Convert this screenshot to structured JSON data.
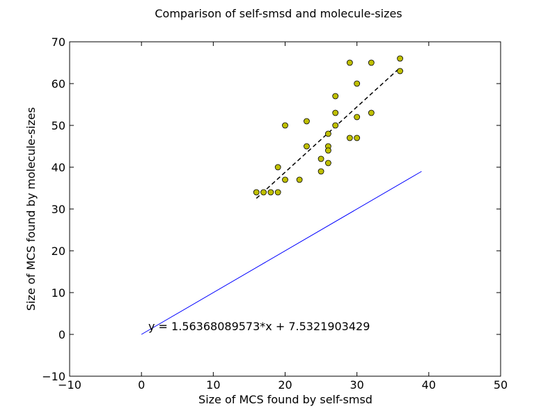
{
  "chart_data": {
    "type": "scatter",
    "title": "Comparison of self-smsd and molecule-sizes",
    "xlabel": "Size of MCS found by self-smsd",
    "ylabel": "Size of MCS found by molecule-sizes",
    "xlim": [
      -10,
      50
    ],
    "ylim": [
      -10,
      70
    ],
    "xticks": [
      "−10",
      "0",
      "10",
      "20",
      "30",
      "40",
      "50"
    ],
    "yticks": [
      "−10",
      "0",
      "10",
      "20",
      "30",
      "40",
      "50",
      "60",
      "70"
    ],
    "grid": false,
    "annotation": "y = 1.56368089573*x + 7.5321903429",
    "colors": {
      "points_fill": "#bfbf00",
      "points_edge": "#000000",
      "fit_line": "#000000",
      "identity_line": "#0000ff"
    },
    "series": [
      {
        "type": "scatter",
        "x": [
          16,
          17,
          18,
          19,
          19,
          20,
          20,
          22,
          23,
          23,
          25,
          25,
          26,
          26,
          26,
          26,
          27,
          27,
          27,
          29,
          29,
          30,
          30,
          30,
          32,
          32,
          36,
          36
        ],
        "y": [
          34,
          34,
          34,
          34,
          40,
          37,
          50,
          37,
          45,
          51,
          42,
          39,
          48,
          45,
          44,
          41,
          57,
          53,
          50,
          65,
          47,
          60,
          52,
          47,
          65,
          53,
          66,
          63
        ]
      },
      {
        "type": "line",
        "style": "dashed",
        "x": [
          16,
          36
        ],
        "y": [
          32.55,
          63.81
        ]
      },
      {
        "type": "line",
        "style": "solid",
        "x": [
          0,
          39
        ],
        "y": [
          0,
          39
        ]
      }
    ]
  }
}
